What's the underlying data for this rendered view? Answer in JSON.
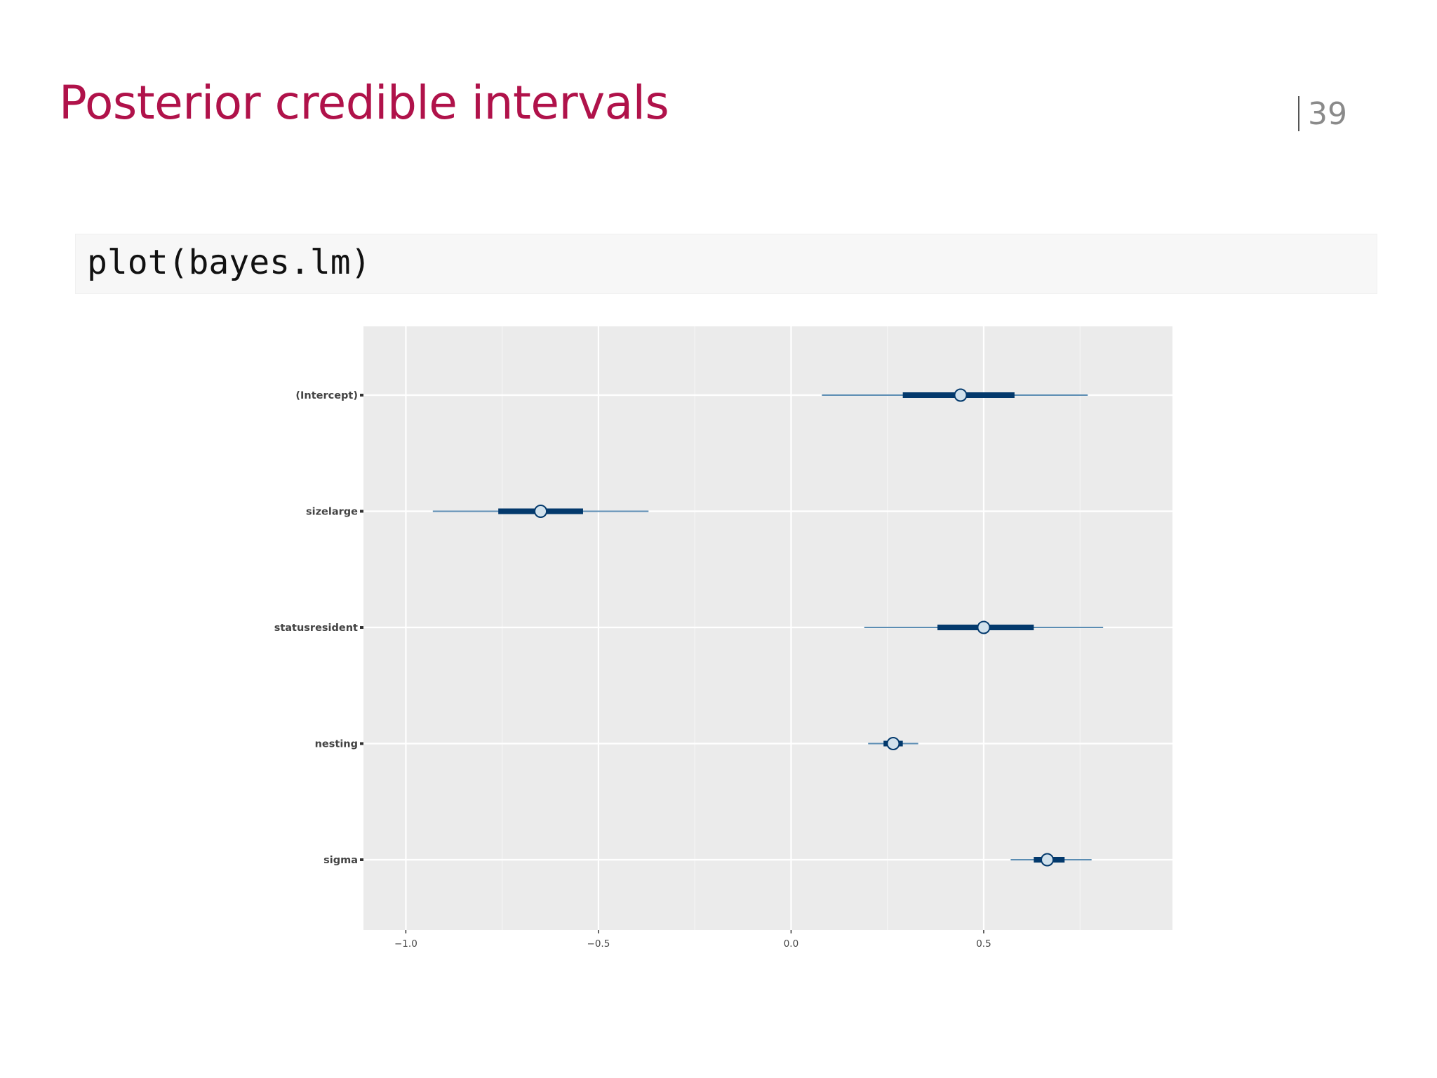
{
  "slide": {
    "title": "Posterior credible intervals",
    "page_number": "39",
    "code": "plot(bayes.lm)"
  },
  "colors": {
    "title": "#b0124a",
    "panel_background": "#ebebeb",
    "grid_major": "#ffffff",
    "grid_minor": "#f5f5f5",
    "outer_interval": "#5b8db3",
    "inner_interval": "#03396c",
    "point_fill": "#d1e1ec",
    "point_stroke": "#03396c"
  },
  "chart_data": {
    "type": "interval",
    "title": "",
    "xlabel": "",
    "ylabel": "",
    "xlim": [
      -1.11,
      0.99
    ],
    "x_ticks": [
      -1.0,
      -0.5,
      0.0,
      0.5
    ],
    "x_tick_labels": [
      "−1.0",
      "−0.5",
      "0.0",
      "0.5"
    ],
    "grid": true,
    "parameters": [
      {
        "name": "(Intercept)",
        "median": 0.44,
        "inner": [
          0.29,
          0.58
        ],
        "outer": [
          0.08,
          0.77
        ]
      },
      {
        "name": "sizelarge",
        "median": -0.65,
        "inner": [
          -0.76,
          -0.54
        ],
        "outer": [
          -0.93,
          -0.37
        ]
      },
      {
        "name": "statusresident",
        "median": 0.5,
        "inner": [
          0.38,
          0.63
        ],
        "outer": [
          0.19,
          0.81
        ]
      },
      {
        "name": "nesting",
        "median": 0.265,
        "inner": [
          0.24,
          0.29
        ],
        "outer": [
          0.2,
          0.33
        ]
      },
      {
        "name": "sigma",
        "median": 0.665,
        "inner": [
          0.63,
          0.71
        ],
        "outer": [
          0.57,
          0.78
        ]
      }
    ]
  }
}
